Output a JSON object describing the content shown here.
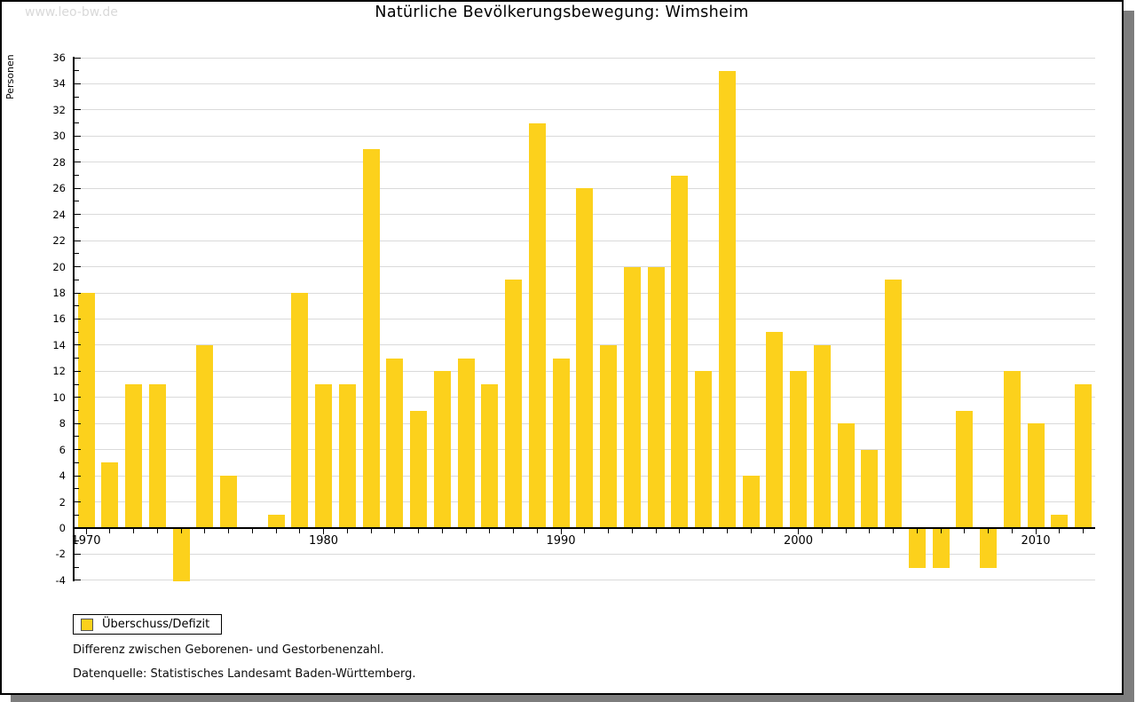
{
  "watermark": "www.leo-bw.de",
  "title": "Natürliche Bevölkerungsbewegung: Wimsheim",
  "ylabel": "Personen",
  "legend": {
    "label": "Überschuss/Defizit"
  },
  "footnotes": {
    "line1": "Differenz zwischen Geborenen- und Gestorbenenzahl.",
    "line2": "Datenquelle: Statistisches Landesamt Baden-Württemberg."
  },
  "colors": {
    "bar": "#fcd11c",
    "grid": "#dadada",
    "axis": "#000000",
    "watermark": "#d9d9d9",
    "frame_shadow": "#7d7d7d",
    "background": "#ffffff"
  },
  "chart_data": {
    "type": "bar",
    "title": "Natürliche Bevölkerungsbewegung: Wimsheim",
    "xlabel": "",
    "ylabel": "Personen",
    "categories": [
      1970,
      1971,
      1972,
      1973,
      1974,
      1975,
      1976,
      1977,
      1978,
      1979,
      1980,
      1981,
      1982,
      1983,
      1984,
      1985,
      1986,
      1987,
      1988,
      1989,
      1990,
      1991,
      1992,
      1993,
      1994,
      1995,
      1996,
      1997,
      1998,
      1999,
      2000,
      2001,
      2002,
      2003,
      2004,
      2005,
      2006,
      2007,
      2008,
      2009,
      2010,
      2011,
      2012
    ],
    "series": [
      {
        "name": "Überschuss/Defizit",
        "values": [
          18,
          5,
          11,
          11,
          -4,
          14,
          4,
          0,
          1,
          18,
          11,
          11,
          29,
          13,
          9,
          12,
          13,
          11,
          19,
          31,
          13,
          26,
          14,
          20,
          20,
          27,
          12,
          35,
          4,
          15,
          12,
          14,
          8,
          6,
          19,
          -3,
          -3,
          9,
          -3,
          12,
          8,
          1,
          11
        ]
      }
    ],
    "ylim": [
      -4,
      36
    ],
    "yticks": [
      36,
      34,
      32,
      30,
      28,
      26,
      24,
      22,
      20,
      18,
      16,
      14,
      12,
      10,
      8,
      6,
      4,
      2,
      0,
      -2,
      -4
    ],
    "xticks_labeled": [
      1970,
      1980,
      1990,
      2000,
      2010
    ],
    "grid": true,
    "gridlines_at_even_values": true,
    "legend_position": "bottom-left",
    "bars_with_zero_value_not_drawn": [
      1977
    ]
  }
}
